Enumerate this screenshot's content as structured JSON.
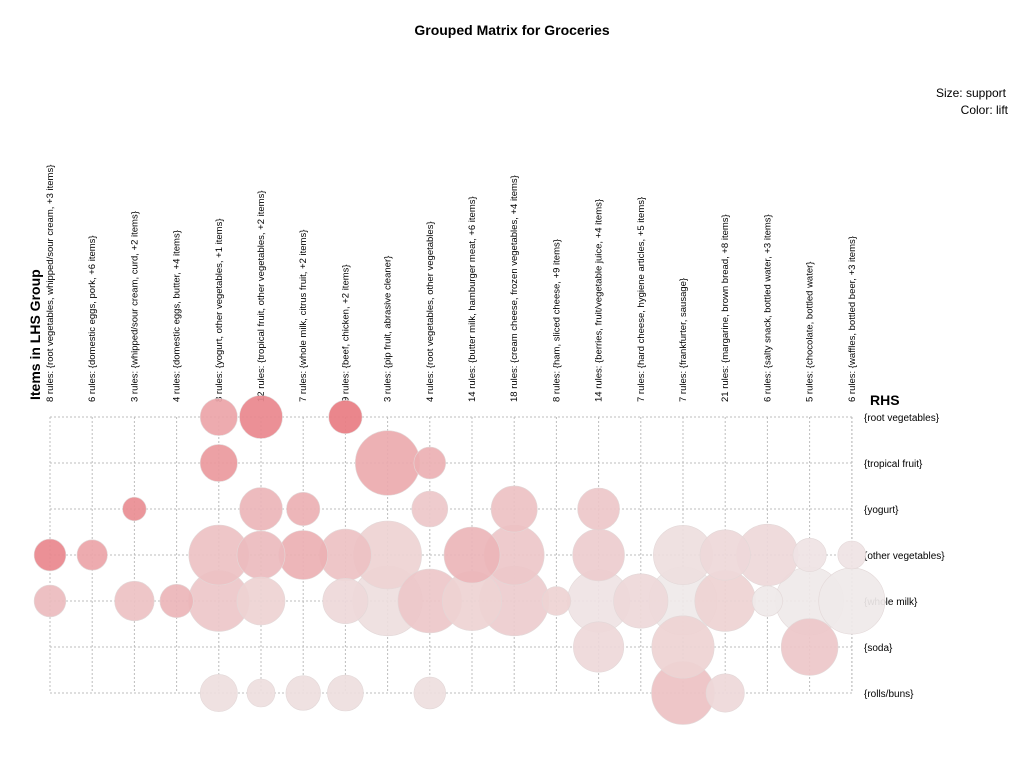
{
  "chart_data": {
    "type": "scatter",
    "title": "Grouped Matrix for Groceries",
    "legend": {
      "size_label": "Size: support",
      "color_label": "Color: lift"
    },
    "xlabel": "Items in LHS Group",
    "ylabel": "RHS",
    "grid": true,
    "columns": [
      "8 rules: {root vegetables, whipped/sour cream, +3 items}",
      "6 rules: {domestic eggs, pork, +6 items}",
      "3 rules: {whipped/sour cream, curd, +2 items}",
      "4 rules: {domestic eggs, butter, +4 items}",
      "8 rules: {yogurt, other vegetables, +1 items}",
      "12 rules: {tropical fruit, other vegetables, +2 items}",
      "7 rules: {whole milk, citrus fruit, +2 items}",
      "9 rules: {beef, chicken, +2 items}",
      "3 rules: {pip fruit, abrasive cleaner}",
      "4 rules: {root vegetables, other vegetables}",
      "14 rules: {butter milk, hamburger meat, +6 items}",
      "18 rules: {cream cheese, frozen vegetables, +4 items}",
      "8 rules: {ham, sliced cheese, +9 items}",
      "14 rules: {berries, fruit/vegetable juice, +4 items}",
      "7 rules: {hard cheese, hygiene articles, +5 items}",
      "7 rules: {frankfurter, sausage}",
      "21 rules: {margarine, brown bread, +8 items}",
      "6 rules: {salty snack, bottled water, +3 items}",
      "5 rules: {chocolate, bottled water}",
      "6 rules: {waffles, bottled beer, +3 items}"
    ],
    "rows": [
      "{root vegetables}",
      "{tropical fruit}",
      "{yogurt}",
      "{other vegetables}",
      "{whole milk}",
      "{soda}",
      "{rolls/buns}"
    ],
    "points": [
      {
        "col": 4,
        "row": 0,
        "support": 0.3,
        "lift": 0.6
      },
      {
        "col": 5,
        "row": 0,
        "support": 0.4,
        "lift": 0.85
      },
      {
        "col": 7,
        "row": 0,
        "support": 0.24,
        "lift": 0.95
      },
      {
        "col": 4,
        "row": 1,
        "support": 0.3,
        "lift": 0.7
      },
      {
        "col": 8,
        "row": 1,
        "support": 0.9,
        "lift": 0.55
      },
      {
        "col": 9,
        "row": 1,
        "support": 0.22,
        "lift": 0.5
      },
      {
        "col": 2,
        "row": 2,
        "support": 0.12,
        "lift": 0.8
      },
      {
        "col": 5,
        "row": 2,
        "support": 0.4,
        "lift": 0.45
      },
      {
        "col": 6,
        "row": 2,
        "support": 0.24,
        "lift": 0.5
      },
      {
        "col": 9,
        "row": 2,
        "support": 0.28,
        "lift": 0.3
      },
      {
        "col": 11,
        "row": 2,
        "support": 0.46,
        "lift": 0.35
      },
      {
        "col": 13,
        "row": 2,
        "support": 0.38,
        "lift": 0.3
      },
      {
        "col": 0,
        "row": 3,
        "support": 0.22,
        "lift": 0.85
      },
      {
        "col": 1,
        "row": 3,
        "support": 0.2,
        "lift": 0.6
      },
      {
        "col": 4,
        "row": 3,
        "support": 0.78,
        "lift": 0.35
      },
      {
        "col": 5,
        "row": 3,
        "support": 0.5,
        "lift": 0.4
      },
      {
        "col": 6,
        "row": 3,
        "support": 0.52,
        "lift": 0.5
      },
      {
        "col": 7,
        "row": 3,
        "support": 0.58,
        "lift": 0.35
      },
      {
        "col": 8,
        "row": 3,
        "support": 1.0,
        "lift": 0.2
      },
      {
        "col": 10,
        "row": 3,
        "support": 0.68,
        "lift": 0.45
      },
      {
        "col": 11,
        "row": 3,
        "support": 0.78,
        "lift": 0.3
      },
      {
        "col": 13,
        "row": 3,
        "support": 0.58,
        "lift": 0.25
      },
      {
        "col": 15,
        "row": 3,
        "support": 0.76,
        "lift": 0.1
      },
      {
        "col": 16,
        "row": 3,
        "support": 0.55,
        "lift": 0.15
      },
      {
        "col": 17,
        "row": 3,
        "support": 0.82,
        "lift": 0.15
      },
      {
        "col": 18,
        "row": 3,
        "support": 0.24,
        "lift": 0.05
      },
      {
        "col": 19,
        "row": 3,
        "support": 0.17,
        "lift": 0.05
      },
      {
        "col": 0,
        "row": 4,
        "support": 0.22,
        "lift": 0.4
      },
      {
        "col": 2,
        "row": 4,
        "support": 0.34,
        "lift": 0.35
      },
      {
        "col": 3,
        "row": 4,
        "support": 0.24,
        "lift": 0.45
      },
      {
        "col": 4,
        "row": 4,
        "support": 0.8,
        "lift": 0.3
      },
      {
        "col": 5,
        "row": 4,
        "support": 0.5,
        "lift": 0.2
      },
      {
        "col": 7,
        "row": 4,
        "support": 0.44,
        "lift": 0.15
      },
      {
        "col": 8,
        "row": 4,
        "support": 1.05,
        "lift": 0.1
      },
      {
        "col": 9,
        "row": 4,
        "support": 0.88,
        "lift": 0.3
      },
      {
        "col": 10,
        "row": 4,
        "support": 0.76,
        "lift": 0.2
      },
      {
        "col": 11,
        "row": 4,
        "support": 1.05,
        "lift": 0.25
      },
      {
        "col": 12,
        "row": 4,
        "support": 0.18,
        "lift": 0.2
      },
      {
        "col": 13,
        "row": 4,
        "support": 0.84,
        "lift": 0.05
      },
      {
        "col": 14,
        "row": 4,
        "support": 0.64,
        "lift": 0.15
      },
      {
        "col": 15,
        "row": 4,
        "support": 1.0,
        "lift": 0.0
      },
      {
        "col": 16,
        "row": 4,
        "support": 0.8,
        "lift": 0.2
      },
      {
        "col": 17,
        "row": 4,
        "support": 0.2,
        "lift": 0.0
      },
      {
        "col": 18,
        "row": 4,
        "support": 1.0,
        "lift": 0.0
      },
      {
        "col": 19,
        "row": 4,
        "support": 0.95,
        "lift": 0.0
      },
      {
        "col": 13,
        "row": 5,
        "support": 0.55,
        "lift": 0.15
      },
      {
        "col": 15,
        "row": 5,
        "support": 0.84,
        "lift": 0.2
      },
      {
        "col": 18,
        "row": 5,
        "support": 0.7,
        "lift": 0.3
      },
      {
        "col": 4,
        "row": 6,
        "support": 0.3,
        "lift": 0.1
      },
      {
        "col": 5,
        "row": 6,
        "support": 0.17,
        "lift": 0.1
      },
      {
        "col": 6,
        "row": 6,
        "support": 0.26,
        "lift": 0.1
      },
      {
        "col": 7,
        "row": 6,
        "support": 0.28,
        "lift": 0.1
      },
      {
        "col": 9,
        "row": 6,
        "support": 0.22,
        "lift": 0.1
      },
      {
        "col": 15,
        "row": 6,
        "support": 0.86,
        "lift": 0.35
      },
      {
        "col": 16,
        "row": 6,
        "support": 0.32,
        "lift": 0.15
      }
    ],
    "colors": {
      "high_lift": "#e8767d",
      "low_lift": "#efe9e9",
      "grid": "#bdbdbd"
    }
  }
}
